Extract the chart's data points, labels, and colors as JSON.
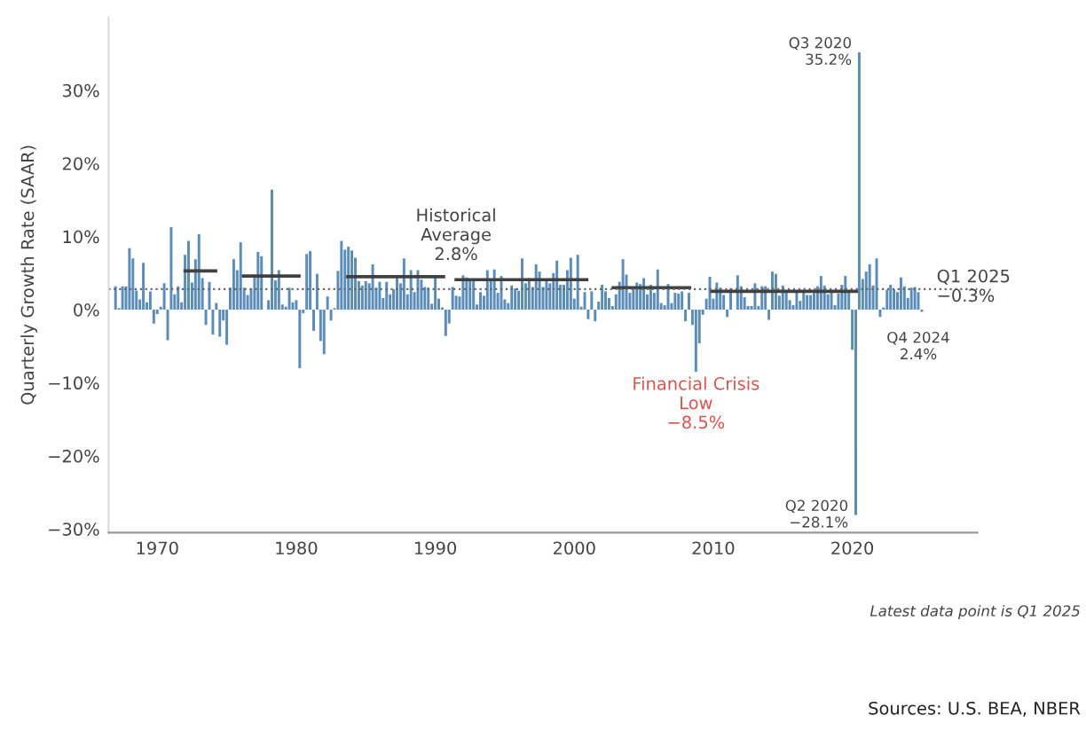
{
  "chart_data": {
    "type": "bar",
    "ylabel": "Quarterly Growth Rate (SAAR)",
    "xlim": [
      1966.5,
      2029
    ],
    "xticks": [
      1970,
      1980,
      1990,
      2000,
      2010,
      2020
    ],
    "ylim": [
      -30.5,
      40
    ],
    "yticks": [
      {
        "value": -30,
        "label": "−30%"
      },
      {
        "value": -20,
        "label": "−20%"
      },
      {
        "value": -10,
        "label": "−10%"
      },
      {
        "value": 0,
        "label": "0%"
      },
      {
        "value": 10,
        "label": "10%"
      },
      {
        "value": 20,
        "label": "20%"
      },
      {
        "value": 30,
        "label": "30%"
      }
    ],
    "grid": false,
    "series": [
      {
        "color": "#5b8db8",
        "x": [
          1967.0,
          1967.25,
          1967.5,
          1967.75,
          1968.0,
          1968.25,
          1968.5,
          1968.75,
          1969.0,
          1969.25,
          1969.5,
          1969.75,
          1970.0,
          1970.25,
          1970.5,
          1970.75,
          1971.0,
          1971.25,
          1971.5,
          1971.75,
          1972.0,
          1972.25,
          1972.5,
          1972.75,
          1973.0,
          1973.25,
          1973.5,
          1973.75,
          1974.0,
          1974.25,
          1974.5,
          1974.75,
          1975.0,
          1975.25,
          1975.5,
          1975.75,
          1976.0,
          1976.25,
          1976.5,
          1976.75,
          1977.0,
          1977.25,
          1977.5,
          1977.75,
          1978.0,
          1978.25,
          1978.5,
          1978.75,
          1979.0,
          1979.25,
          1979.5,
          1979.75,
          1980.0,
          1980.25,
          1980.5,
          1980.75,
          1981.0,
          1981.25,
          1981.5,
          1981.75,
          1982.0,
          1982.25,
          1982.5,
          1982.75,
          1983.0,
          1983.25,
          1983.5,
          1983.75,
          1984.0,
          1984.25,
          1984.5,
          1984.75,
          1985.0,
          1985.25,
          1985.5,
          1985.75,
          1986.0,
          1986.25,
          1986.5,
          1986.75,
          1987.0,
          1987.25,
          1987.5,
          1987.75,
          1988.0,
          1988.25,
          1988.5,
          1988.75,
          1989.0,
          1989.25,
          1989.5,
          1989.75,
          1990.0,
          1990.25,
          1990.5,
          1990.75,
          1991.0,
          1991.25,
          1991.5,
          1991.75,
          1992.0,
          1992.25,
          1992.5,
          1992.75,
          1993.0,
          1993.25,
          1993.5,
          1993.75,
          1994.0,
          1994.25,
          1994.5,
          1994.75,
          1995.0,
          1995.25,
          1995.5,
          1995.75,
          1996.0,
          1996.25,
          1996.5,
          1996.75,
          1997.0,
          1997.25,
          1997.5,
          1997.75,
          1998.0,
          1998.25,
          1998.5,
          1998.75,
          1999.0,
          1999.25,
          1999.5,
          1999.75,
          2000.0,
          2000.25,
          2000.5,
          2000.75,
          2001.0,
          2001.25,
          2001.5,
          2001.75,
          2002.0,
          2002.25,
          2002.5,
          2002.75,
          2003.0,
          2003.25,
          2003.5,
          2003.75,
          2004.0,
          2004.25,
          2004.5,
          2004.75,
          2005.0,
          2005.25,
          2005.5,
          2005.75,
          2006.0,
          2006.25,
          2006.5,
          2006.75,
          2007.0,
          2007.25,
          2007.5,
          2007.75,
          2008.0,
          2008.25,
          2008.5,
          2008.75,
          2009.0,
          2009.25,
          2009.5,
          2009.75,
          2010.0,
          2010.25,
          2010.5,
          2010.75,
          2011.0,
          2011.25,
          2011.5,
          2011.75,
          2012.0,
          2012.25,
          2012.5,
          2012.75,
          2013.0,
          2013.25,
          2013.5,
          2013.75,
          2014.0,
          2014.25,
          2014.5,
          2014.75,
          2015.0,
          2015.25,
          2015.5,
          2015.75,
          2016.0,
          2016.25,
          2016.5,
          2016.75,
          2017.0,
          2017.25,
          2017.5,
          2017.75,
          2018.0,
          2018.25,
          2018.5,
          2018.75,
          2019.0,
          2019.25,
          2019.5,
          2019.75,
          2020.0,
          2020.25,
          2020.5,
          2020.75,
          2021.0,
          2021.25,
          2021.5,
          2021.75,
          2022.0,
          2022.25,
          2022.5,
          2022.75,
          2023.0,
          2023.25,
          2023.5,
          2023.75,
          2024.0,
          2024.25,
          2024.5,
          2024.75,
          2025.0
        ],
        "values": [
          3.2,
          0.2,
          3.2,
          3.2,
          8.4,
          7.0,
          2.6,
          1.4,
          6.4,
          1.0,
          2.5,
          -1.9,
          -0.6,
          0.4,
          3.6,
          -4.2,
          11.3,
          2.1,
          3.2,
          1.0,
          7.5,
          9.4,
          3.7,
          6.9,
          10.3,
          4.3,
          -2.1,
          3.8,
          -3.4,
          0.9,
          -3.7,
          -1.5,
          -4.8,
          3.0,
          6.9,
          5.4,
          9.2,
          3.0,
          2.0,
          2.9,
          4.8,
          7.9,
          7.3,
          0.0,
          1.3,
          16.4,
          4.0,
          5.4,
          0.7,
          0.4,
          3.0,
          1.0,
          1.3,
          -8.0,
          -0.5,
          7.6,
          8.0,
          -2.9,
          4.9,
          -4.3,
          -6.1,
          1.8,
          -1.5,
          0.2,
          5.3,
          9.4,
          8.2,
          8.6,
          8.1,
          7.1,
          3.9,
          3.3,
          3.9,
          3.6,
          6.2,
          3.0,
          3.8,
          1.6,
          3.8,
          2.1,
          2.8,
          4.6,
          3.6,
          7.0,
          2.1,
          5.4,
          2.4,
          5.4,
          4.1,
          3.1,
          3.0,
          0.8,
          4.4,
          1.5,
          0.3,
          -3.6,
          -1.9,
          3.1,
          1.9,
          1.8,
          4.7,
          4.4,
          4.0,
          4.2,
          0.7,
          2.4,
          1.9,
          5.4,
          3.9,
          5.5,
          2.3,
          4.6,
          1.4,
          0.9,
          3.3,
          2.9,
          2.6,
          7.0,
          3.6,
          4.3,
          3.1,
          6.2,
          5.2,
          3.1,
          3.9,
          3.6,
          5.0,
          6.7,
          3.4,
          3.4,
          5.4,
          7.1,
          1.5,
          7.5,
          0.4,
          2.4,
          -1.3,
          2.5,
          -1.6,
          1.1,
          3.4,
          2.5,
          1.6,
          0.5,
          2.1,
          3.8,
          6.9,
          4.8,
          2.3,
          3.0,
          3.7,
          3.5,
          4.3,
          2.1,
          3.4,
          2.3,
          5.5,
          0.9,
          0.6,
          3.5,
          0.9,
          2.3,
          2.2,
          2.5,
          -1.6,
          2.3,
          -2.1,
          -8.5,
          -4.6,
          -0.7,
          1.5,
          4.5,
          1.5,
          3.7,
          3.0,
          2.0,
          -1.0,
          2.9,
          null,
          4.7,
          3.2,
          1.7,
          0.5,
          0.5,
          3.6,
          0.5,
          3.2,
          3.2,
          -1.4,
          5.2,
          4.9,
          1.9,
          3.3,
          2.3,
          1.3,
          0.6,
          2.4,
          1.2,
          2.4,
          2.0,
          2.0,
          2.3,
          3.2,
          4.6,
          3.3,
          2.1,
          2.5,
          0.6,
          2.2,
          3.4,
          4.6,
          2.6,
          -5.5,
          -28.1,
          35.2,
          4.2,
          5.2,
          6.2,
          3.3,
          7.0,
          -1.0,
          0.3,
          2.7,
          3.4,
          2.8,
          2.4,
          4.4,
          3.2,
          1.6,
          3.0,
          3.1,
          2.4,
          -0.3
        ]
      },
      {
        "type": "line",
        "color": "#404040",
        "x": [
          1972.0,
          1974.2
        ],
        "values": [
          5.3,
          5.3
        ]
      },
      {
        "type": "line",
        "color": "#404040",
        "x": [
          1976.2,
          1980.2
        ],
        "values": [
          4.6,
          4.6
        ]
      },
      {
        "type": "line",
        "color": "#404040",
        "x": [
          1983.7,
          1990.6
        ],
        "values": [
          4.5,
          4.5
        ]
      },
      {
        "type": "line",
        "color": "#404040",
        "x": [
          1991.5,
          2000.9
        ],
        "values": [
          4.1,
          4.1
        ]
      },
      {
        "type": "line",
        "color": "#404040",
        "x": [
          2002.8,
          2008.3
        ],
        "values": [
          3.0,
          3.0
        ]
      },
      {
        "type": "line",
        "color": "#404040",
        "x": [
          2009.9,
          2020.3
        ],
        "values": [
          2.5,
          2.5
        ]
      }
    ],
    "ref_lines": [
      {
        "axis": "y",
        "value": 2.8,
        "label": "Historical\nAverage\n2.8%",
        "color": "#666666",
        "line_style": "dotted"
      }
    ],
    "annotations": [
      {
        "text": "Q3 2020\n35.2%",
        "x": 2020.5,
        "y": 35.2
      },
      {
        "text": "Q2 2020\n−28.1%",
        "x": 2020.25,
        "y": -28.1
      },
      {
        "text": "Financial Crisis\nLow\n−8.5%",
        "x": 2008.75,
        "y": -8.5
      },
      {
        "text": "Q1 2025\n−0.3%",
        "x": 2025.0,
        "y": -0.3
      },
      {
        "text": "Q4 2024\n2.4%",
        "x": 2024.75,
        "y": 2.4
      },
      "Latest data point is Q1 2025",
      "Sources: U.S. BEA, NBER"
    ]
  }
}
